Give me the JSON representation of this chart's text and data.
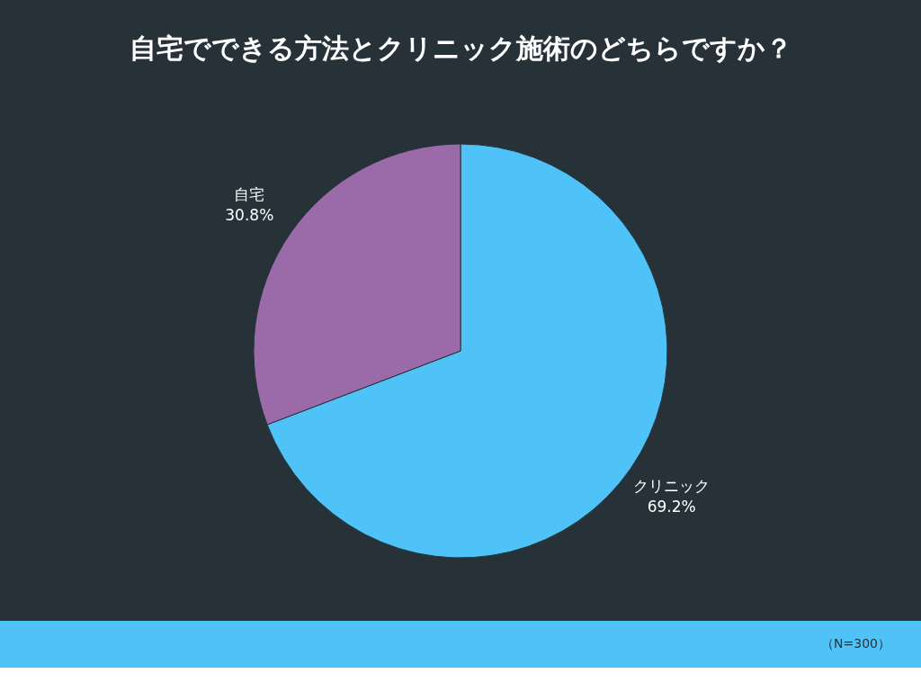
{
  "chart_data": {
    "type": "pie",
    "title": "自宅でできる方法とクリニック施術のどちらですか？",
    "categories": [
      "クリニック",
      "自宅"
    ],
    "values": [
      69.2,
      30.8
    ],
    "value_labels": [
      "69.2%",
      "30.8%"
    ],
    "colors": [
      "#4fc3f7",
      "#9b6aa8"
    ],
    "legend": false,
    "annotations": [
      "（N=300）"
    ]
  }
}
